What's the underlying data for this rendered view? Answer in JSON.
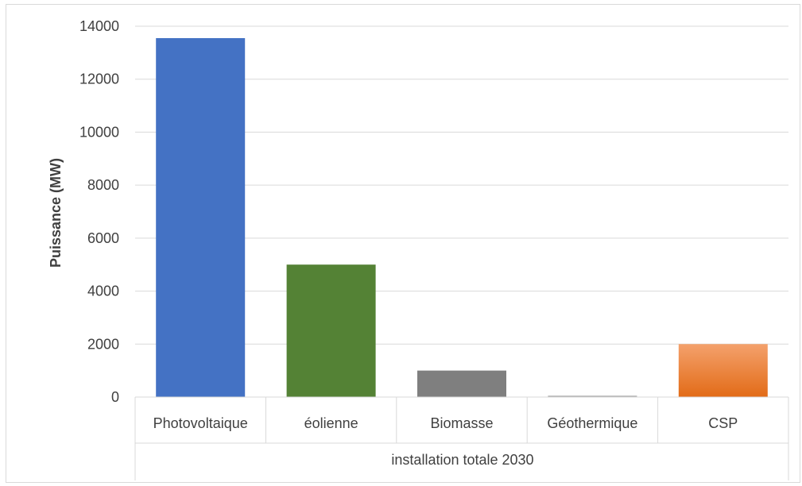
{
  "chart_data": {
    "type": "bar",
    "title": "",
    "xlabel": "installation totale 2030",
    "ylabel": "Puissance (MW)",
    "ylim": [
      0,
      14000
    ],
    "ytick_step": 2000,
    "yticks": [
      "0",
      "2000",
      "4000",
      "6000",
      "8000",
      "10000",
      "12000",
      "14000"
    ],
    "grid": true,
    "categories": [
      "Photovoltaique",
      "éolienne",
      "Biomasse",
      "Géothermique",
      "CSP"
    ],
    "values": [
      13550,
      5000,
      1000,
      50,
      2000
    ],
    "colors": [
      "#4472c4",
      "#548235",
      "#7f7f7f",
      "#a6a6a6",
      "#ed7d31"
    ]
  }
}
